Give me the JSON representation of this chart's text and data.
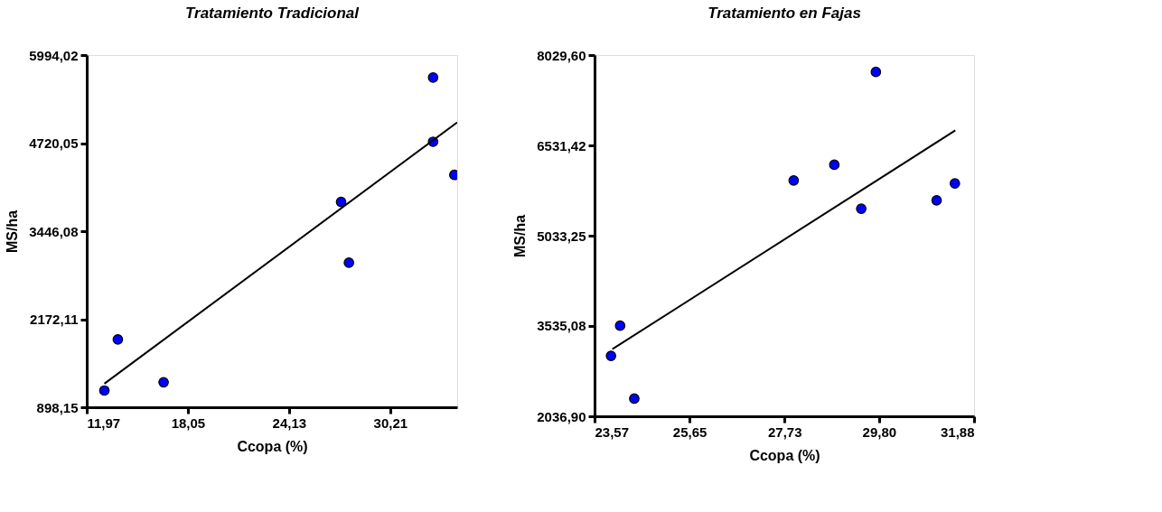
{
  "chart_data": [
    {
      "type": "scatter",
      "title": "Tratamiento Tradicional",
      "xlabel": "Ccopa (%)",
      "ylabel": "MS/ha",
      "marker": "circle",
      "grid": false,
      "xlim": [
        11.97,
        34.24
      ],
      "ylim": [
        898.15,
        5994.02
      ],
      "xticks": [
        {
          "value": 11.97,
          "label": "11,97"
        },
        {
          "value": 18.05,
          "label": "18,05"
        },
        {
          "value": 24.13,
          "label": "24,13"
        },
        {
          "value": 30.21,
          "label": "30,21"
        }
      ],
      "yticks": [
        {
          "value": 898.15,
          "label": "898,15"
        },
        {
          "value": 2172.11,
          "label": "2172,11"
        },
        {
          "value": 3446.08,
          "label": "3446,08"
        },
        {
          "value": 4720.05,
          "label": "4720,05"
        },
        {
          "value": 5994.02,
          "label": "5994,02"
        }
      ],
      "series": [
        {
          "color": "#0000ff",
          "x": [
            13.03,
            13.84,
            16.59,
            27.26,
            27.73,
            32.79,
            32.79,
            34.07
          ],
          "values": [
            1140,
            1880,
            1260,
            3870,
            2990,
            5670,
            4740,
            4260
          ]
        },
        {
          "type": "line",
          "marker": "none",
          "color": "#000000",
          "x": [
            13.03,
            34.24
          ],
          "values": [
            1240,
            5020
          ]
        }
      ]
    },
    {
      "type": "scatter",
      "title": "Tratamiento en Fajas",
      "xlabel": "Ccopa (%)",
      "ylabel": "MS/ha",
      "marker": "circle",
      "grid": false,
      "xlim": [
        23.57,
        31.88
      ],
      "ylim": [
        2036.9,
        8029.6
      ],
      "xticks": [
        {
          "value": 23.57,
          "label": "23,57"
        },
        {
          "value": 25.65,
          "label": "25,65"
        },
        {
          "value": 27.73,
          "label": "27,73"
        },
        {
          "value": 29.8,
          "label": "29,80"
        },
        {
          "value": 31.88,
          "label": "31,88"
        }
      ],
      "yticks": [
        {
          "value": 2036.9,
          "label": "2036,90"
        },
        {
          "value": 3535.08,
          "label": "3535,08"
        },
        {
          "value": 5033.25,
          "label": "5033,25"
        },
        {
          "value": 6531.42,
          "label": "6531,42"
        },
        {
          "value": 8029.6,
          "label": "8029,60"
        }
      ],
      "series": [
        {
          "color": "#0000ff",
          "x": [
            23.93,
            24.13,
            24.44,
            27.93,
            28.82,
            29.41,
            29.73,
            31.06,
            31.46
          ],
          "values": [
            3040,
            3540,
            2330,
            5950,
            6210,
            5480,
            7750,
            5620,
            5900
          ]
        },
        {
          "type": "line",
          "marker": "none",
          "color": "#000000",
          "x": [
            23.96,
            31.47
          ],
          "values": [
            3150,
            6780
          ]
        }
      ]
    }
  ]
}
